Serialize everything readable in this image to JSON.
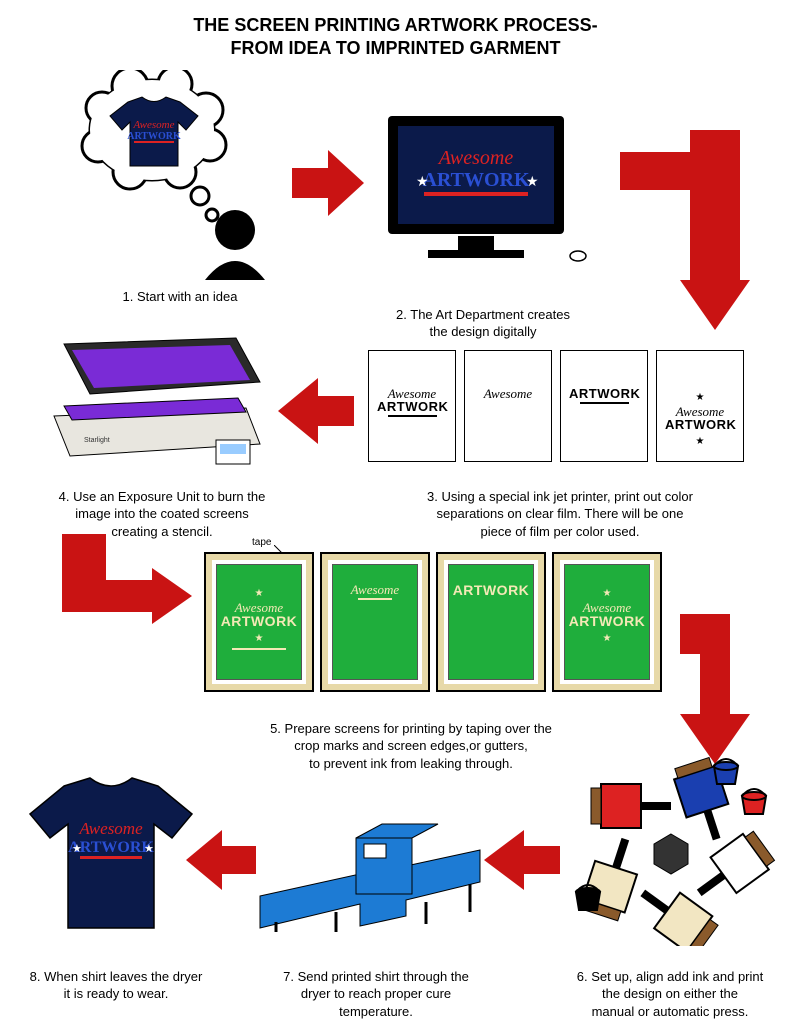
{
  "colors": {
    "arrow": "#c91313",
    "navy": "#0b1a4a",
    "screenGreen": "#1fae3c",
    "screenArt": "#f4e9b6",
    "frameWood": "#e7d9a8",
    "exposurePurple": "#7a2bd6",
    "exposureBody": "#e8e6df",
    "dryerBlue": "#1d7bd4",
    "logoScript": "#d22",
    "logoBlock": "#2a4fd3",
    "logoUnderline": "#d22",
    "star": "#ffffff",
    "black": "#000000",
    "white": "#ffffff",
    "pressRed": "#d22",
    "pressBlue": "#1a3fb0",
    "pressCream": "#f2e6c2"
  },
  "title": {
    "line1": "THE SCREEN PRINTING ARTWORK PROCESS-",
    "line2": "FROM IDEA TO IMPRINTED GARMENT"
  },
  "logoText": {
    "script": "Awesome",
    "block": "ARTWORK"
  },
  "steps": {
    "s1": "1. Start with an idea",
    "s2": "2. The Art Department creates\nthe design digitally",
    "s3": "3. Using a special ink jet printer, print out color\nseparations on clear film.  There will be one\npiece of film per color used.",
    "s4": "4. Use an Exposure Unit to burn the\nimage into the coated screens\ncreating a stencil.",
    "s5": "5. Prepare screens for printing by taping over the\ncrop marks and screen edges,or gutters,\nto prevent ink from leaking through.",
    "s6": "6. Set up, align add ink and print\nthe design on either the\nmanual or automatic press.",
    "s7": "7. Send printed shirt through the\ndryer to reach proper cure\ntemperature.",
    "s8": "8. When shirt leaves the dryer\nit is ready to wear."
  },
  "tapeLabel": "tape",
  "films": [
    {
      "script": "Awesome",
      "block": "ARTWORK",
      "underline": true,
      "star": false
    },
    {
      "script": "Awesome",
      "block": "",
      "underline": false,
      "star": false
    },
    {
      "script": "",
      "block": "ARTWORK",
      "underline": true,
      "star": false
    },
    {
      "script": "Awesome",
      "block": "ARTWORK",
      "underline": false,
      "star": true
    }
  ],
  "screens": [
    {
      "script": "Awesome",
      "block": "ARTWORK",
      "underline": true,
      "star": true
    },
    {
      "script": "Awesome",
      "block": "",
      "underline": true,
      "star": false
    },
    {
      "script": "",
      "block": "ARTWORK",
      "underline": false,
      "star": false
    },
    {
      "script": "Awesome",
      "block": "ARTWORK",
      "underline": false,
      "star": true
    }
  ],
  "press": {
    "platens": [
      {
        "fill": "#d22"
      },
      {
        "fill": "#1a3fb0"
      },
      {
        "fill": "#ffffff"
      },
      {
        "fill": "#f2e6c2"
      },
      {
        "fill": "#f2e6c2"
      }
    ],
    "buckets": [
      {
        "fill": "#1a3fb0"
      },
      {
        "fill": "#d22"
      },
      {
        "fill": "#000000"
      }
    ]
  }
}
